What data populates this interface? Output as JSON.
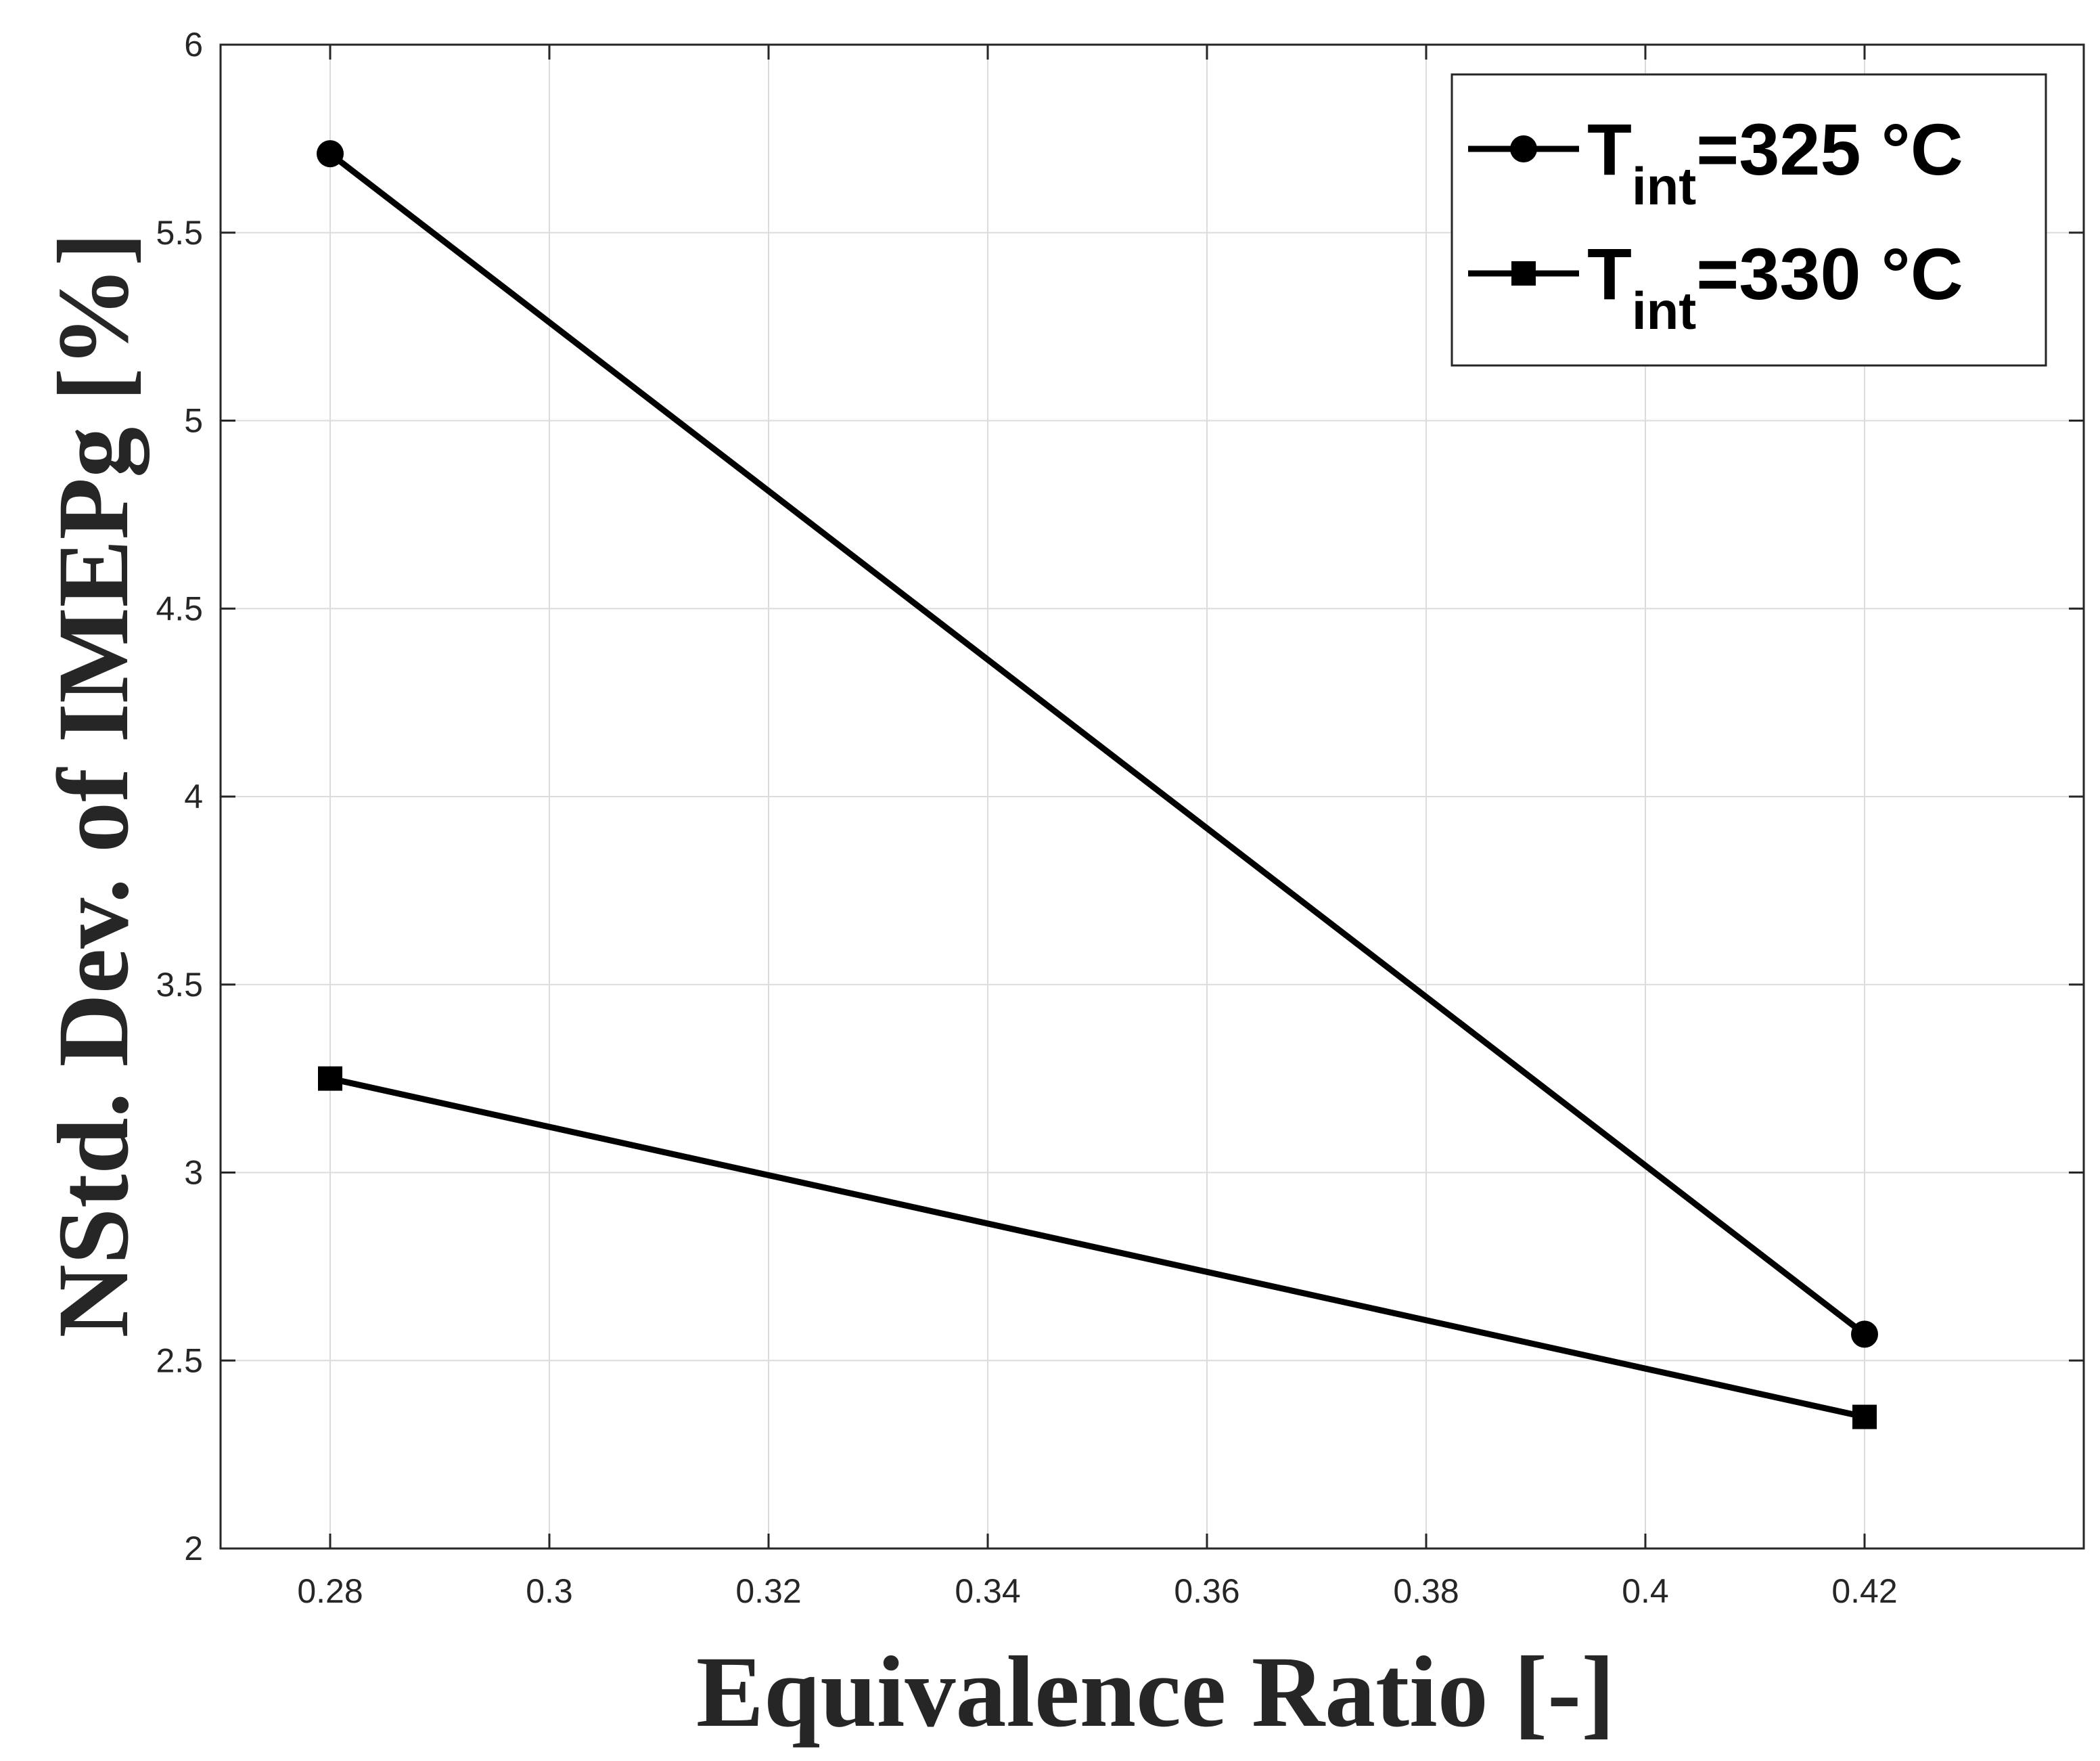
{
  "chart_data": {
    "type": "line",
    "xlabel": "Equivalence Ratio [-]",
    "ylabel": "NStd. Dev. of IMEPg [%]",
    "xlim": [
      0.27,
      0.44
    ],
    "ylim": [
      2,
      6
    ],
    "xticks": [
      0.28,
      0.3,
      0.32,
      0.34,
      0.36,
      0.38,
      0.4,
      0.42
    ],
    "xtick_labels": [
      "0.28",
      "0.3",
      "0.32",
      "0.34",
      "0.36",
      "0.38",
      "0.4",
      "0.42"
    ],
    "yticks": [
      2,
      2.5,
      3,
      3.5,
      4,
      4.5,
      5,
      5.5,
      6
    ],
    "ytick_labels": [
      "2",
      "2.5",
      "3",
      "3.5",
      "4",
      "4.5",
      "5",
      "5.5",
      "6"
    ],
    "grid": true,
    "legend_position": "top-right",
    "series": [
      {
        "name_main": "T",
        "name_sub": "int",
        "name_rest": "=325 °C",
        "marker": "circle",
        "color": "#000000",
        "x": [
          0.28,
          0.42
        ],
        "y": [
          5.71,
          2.57
        ]
      },
      {
        "name_main": "T",
        "name_sub": "int",
        "name_rest": "=330 °C",
        "marker": "square",
        "color": "#000000",
        "x": [
          0.28,
          0.42
        ],
        "y": [
          3.25,
          2.35
        ]
      }
    ]
  }
}
